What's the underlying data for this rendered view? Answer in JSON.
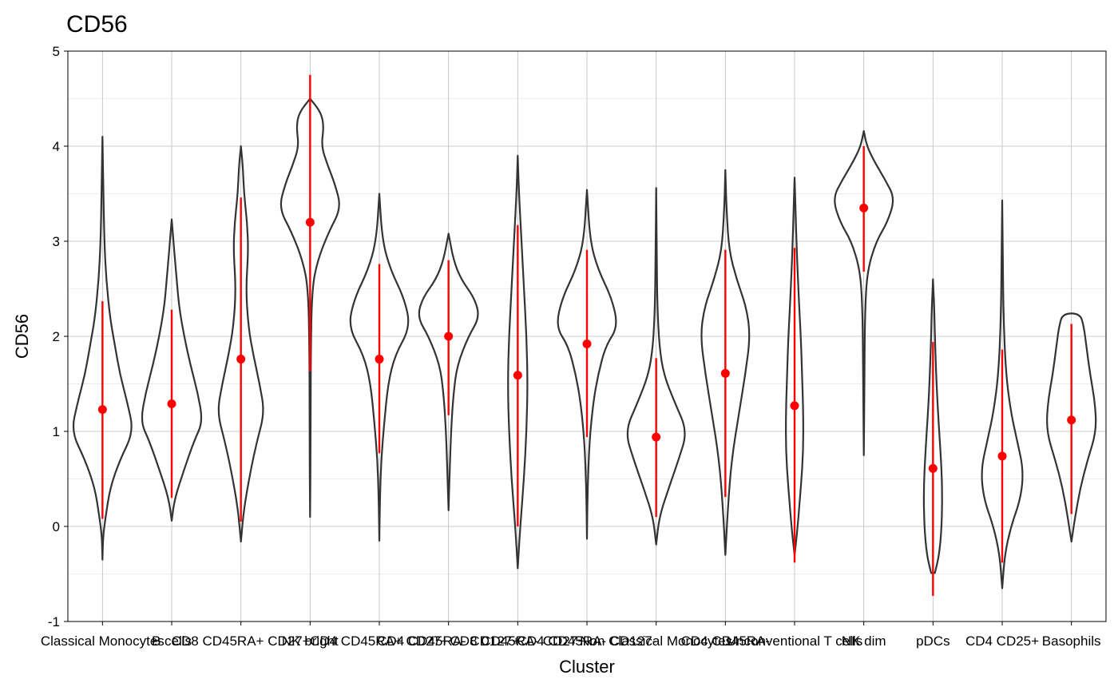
{
  "chart_data": {
    "type": "violin",
    "title": "CD56",
    "xlabel": "Cluster",
    "ylabel": "CD56",
    "ylim": [
      -1,
      5
    ],
    "yticks": [
      -1,
      0,
      1,
      2,
      3,
      4,
      5
    ],
    "ytick_labels": [
      "-1",
      "0",
      "1",
      "2",
      "3",
      "4",
      "5"
    ],
    "grid": true,
    "legend": "none",
    "colors": {
      "violin": "#333333",
      "summary": "#ff0000",
      "grid": "#d9d9d9"
    },
    "categories": [
      {
        "name": "Classical Monocytes",
        "min": -0.35,
        "max": 4.1,
        "mean": 1.23,
        "sd_low": 0.08,
        "sd_high": 2.37,
        "profile": [
          [
            -0.35,
            0.0
          ],
          [
            -0.1,
            0.01
          ],
          [
            0.1,
            0.05
          ],
          [
            0.4,
            0.12
          ],
          [
            0.7,
            0.28
          ],
          [
            1.0,
            0.5
          ],
          [
            1.3,
            0.4
          ],
          [
            1.6,
            0.28
          ],
          [
            1.9,
            0.2
          ],
          [
            2.2,
            0.12
          ],
          [
            2.6,
            0.06
          ],
          [
            3.0,
            0.03
          ],
          [
            3.5,
            0.015
          ],
          [
            4.1,
            0.0
          ]
        ]
      },
      {
        "name": "B cells",
        "min": 0.06,
        "max": 3.23,
        "mean": 1.29,
        "sd_low": 0.3,
        "sd_high": 2.28,
        "profile": [
          [
            0.06,
            0.0
          ],
          [
            0.3,
            0.05
          ],
          [
            0.6,
            0.2
          ],
          [
            0.9,
            0.36
          ],
          [
            1.1,
            0.5
          ],
          [
            1.4,
            0.42
          ],
          [
            1.7,
            0.3
          ],
          [
            2.0,
            0.2
          ],
          [
            2.3,
            0.12
          ],
          [
            2.6,
            0.08
          ],
          [
            2.9,
            0.04
          ],
          [
            3.23,
            0.0
          ]
        ]
      },
      {
        "name": "CD8 CD45RA+ CD27+",
        "min": -0.16,
        "max": 4.0,
        "mean": 1.76,
        "sd_low": 0.05,
        "sd_high": 3.46,
        "profile": [
          [
            -0.16,
            0.0
          ],
          [
            0.2,
            0.05
          ],
          [
            0.6,
            0.16
          ],
          [
            0.9,
            0.26
          ],
          [
            1.2,
            0.38
          ],
          [
            1.5,
            0.3
          ],
          [
            1.8,
            0.2
          ],
          [
            2.1,
            0.12
          ],
          [
            2.5,
            0.08
          ],
          [
            2.9,
            0.12
          ],
          [
            3.2,
            0.1
          ],
          [
            3.5,
            0.05
          ],
          [
            3.8,
            0.03
          ],
          [
            4.0,
            0.0
          ]
        ]
      },
      {
        "name": "NK bright",
        "min": 0.1,
        "max": 4.5,
        "mean": 3.2,
        "sd_low": 1.63,
        "sd_high": 4.75,
        "profile": [
          [
            0.1,
            0.0
          ],
          [
            1.0,
            0.01
          ],
          [
            1.8,
            0.01
          ],
          [
            2.5,
            0.03
          ],
          [
            2.8,
            0.12
          ],
          [
            3.1,
            0.3
          ],
          [
            3.35,
            0.5
          ],
          [
            3.6,
            0.4
          ],
          [
            3.8,
            0.28
          ],
          [
            4.0,
            0.18
          ],
          [
            4.2,
            0.22
          ],
          [
            4.35,
            0.18
          ],
          [
            4.5,
            0.0
          ]
        ]
      },
      {
        "name": "CD4 CD45RA+ CD27+",
        "min": -0.15,
        "max": 3.5,
        "mean": 1.76,
        "sd_low": 0.77,
        "sd_high": 2.76,
        "profile": [
          [
            -0.15,
            0.0
          ],
          [
            0.3,
            0.01
          ],
          [
            0.7,
            0.03
          ],
          [
            1.1,
            0.08
          ],
          [
            1.5,
            0.14
          ],
          [
            1.8,
            0.25
          ],
          [
            2.1,
            0.5
          ],
          [
            2.4,
            0.4
          ],
          [
            2.7,
            0.18
          ],
          [
            3.0,
            0.05
          ],
          [
            3.5,
            0.0
          ]
        ]
      },
      {
        "name": "CD4 CD45RA- CD127+",
        "min": 0.17,
        "max": 3.08,
        "mean": 2.0,
        "sd_low": 1.17,
        "sd_high": 2.8,
        "profile": [
          [
            0.17,
            0.0
          ],
          [
            0.6,
            0.02
          ],
          [
            1.0,
            0.04
          ],
          [
            1.4,
            0.08
          ],
          [
            1.7,
            0.14
          ],
          [
            2.0,
            0.32
          ],
          [
            2.2,
            0.5
          ],
          [
            2.4,
            0.42
          ],
          [
            2.6,
            0.2
          ],
          [
            2.8,
            0.08
          ],
          [
            3.08,
            0.0
          ]
        ]
      },
      {
        "name": "CD8 CD45RA- CD27+",
        "min": -0.44,
        "max": 3.9,
        "mean": 1.59,
        "sd_low": 0.0,
        "sd_high": 3.17,
        "profile": [
          [
            -0.44,
            0.0
          ],
          [
            0.0,
            0.04
          ],
          [
            0.5,
            0.1
          ],
          [
            1.0,
            0.14
          ],
          [
            1.5,
            0.16
          ],
          [
            2.0,
            0.14
          ],
          [
            2.5,
            0.1
          ],
          [
            3.0,
            0.06
          ],
          [
            3.5,
            0.02
          ],
          [
            3.9,
            0.0
          ]
        ]
      },
      {
        "name": "CD4 CD45RA- CD127-",
        "min": -0.13,
        "max": 3.54,
        "mean": 1.92,
        "sd_low": 0.94,
        "sd_high": 2.91,
        "profile": [
          [
            -0.13,
            0.0
          ],
          [
            0.4,
            0.01
          ],
          [
            0.9,
            0.04
          ],
          [
            1.3,
            0.1
          ],
          [
            1.6,
            0.18
          ],
          [
            1.9,
            0.3
          ],
          [
            2.1,
            0.5
          ],
          [
            2.4,
            0.4
          ],
          [
            2.7,
            0.18
          ],
          [
            3.0,
            0.05
          ],
          [
            3.54,
            0.0
          ]
        ]
      },
      {
        "name": "Non Classical Monocytes",
        "min": -0.19,
        "max": 3.56,
        "mean": 0.94,
        "sd_low": 0.1,
        "sd_high": 1.77,
        "profile": [
          [
            -0.19,
            0.0
          ],
          [
            0.1,
            0.05
          ],
          [
            0.4,
            0.2
          ],
          [
            0.7,
            0.36
          ],
          [
            1.0,
            0.5
          ],
          [
            1.3,
            0.3
          ],
          [
            1.6,
            0.12
          ],
          [
            1.9,
            0.05
          ],
          [
            2.3,
            0.02
          ],
          [
            2.8,
            0.01
          ],
          [
            3.56,
            0.0
          ]
        ]
      },
      {
        "name": "CD4 CD45RA-",
        "min": -0.3,
        "max": 3.75,
        "mean": 1.61,
        "sd_low": 0.31,
        "sd_high": 2.91,
        "profile": [
          [
            -0.3,
            0.0
          ],
          [
            0.2,
            0.04
          ],
          [
            0.7,
            0.1
          ],
          [
            1.2,
            0.22
          ],
          [
            1.6,
            0.32
          ],
          [
            2.0,
            0.4
          ],
          [
            2.3,
            0.34
          ],
          [
            2.6,
            0.18
          ],
          [
            2.9,
            0.06
          ],
          [
            3.3,
            0.02
          ],
          [
            3.75,
            0.0
          ]
        ]
      },
      {
        "name": "Unconventional T cells",
        "min": -0.3,
        "max": 3.67,
        "mean": 1.27,
        "sd_low": -0.38,
        "sd_high": 2.93,
        "profile": [
          [
            -0.3,
            0.0
          ],
          [
            0.0,
            0.05
          ],
          [
            0.4,
            0.1
          ],
          [
            0.8,
            0.14
          ],
          [
            1.2,
            0.14
          ],
          [
            1.6,
            0.12
          ],
          [
            2.0,
            0.1
          ],
          [
            2.5,
            0.06
          ],
          [
            3.0,
            0.03
          ],
          [
            3.67,
            0.0
          ]
        ]
      },
      {
        "name": "NK dim",
        "min": 0.75,
        "max": 4.16,
        "mean": 3.35,
        "sd_low": 2.68,
        "sd_high": 4.0,
        "profile": [
          [
            0.75,
            0.0
          ],
          [
            1.5,
            0.01
          ],
          [
            2.3,
            0.02
          ],
          [
            2.7,
            0.06
          ],
          [
            3.0,
            0.2
          ],
          [
            3.2,
            0.38
          ],
          [
            3.45,
            0.5
          ],
          [
            3.65,
            0.34
          ],
          [
            3.85,
            0.16
          ],
          [
            4.0,
            0.05
          ],
          [
            4.16,
            0.0
          ]
        ]
      },
      {
        "name": "pDCs",
        "min": -0.49,
        "max": 2.6,
        "mean": 0.61,
        "sd_low": -0.73,
        "sd_high": 1.94,
        "profile": [
          [
            -0.49,
            0.03
          ],
          [
            -0.3,
            0.1
          ],
          [
            0.0,
            0.14
          ],
          [
            0.4,
            0.15
          ],
          [
            0.8,
            0.12
          ],
          [
            1.2,
            0.08
          ],
          [
            1.6,
            0.05
          ],
          [
            2.0,
            0.03
          ],
          [
            2.3,
            0.02
          ],
          [
            2.6,
            0.0
          ]
        ]
      },
      {
        "name": "CD4 CD25+",
        "min": -0.65,
        "max": 3.43,
        "mean": 0.74,
        "sd_low": -0.38,
        "sd_high": 1.86,
        "profile": [
          [
            -0.65,
            0.0
          ],
          [
            -0.3,
            0.04
          ],
          [
            0.0,
            0.14
          ],
          [
            0.3,
            0.3
          ],
          [
            0.6,
            0.34
          ],
          [
            0.9,
            0.24
          ],
          [
            1.2,
            0.14
          ],
          [
            1.6,
            0.06
          ],
          [
            2.2,
            0.02
          ],
          [
            2.8,
            0.01
          ],
          [
            3.43,
            0.0
          ]
        ]
      },
      {
        "name": "Basophils",
        "min": -0.16,
        "max": 2.24,
        "mean": 1.12,
        "sd_low": 0.13,
        "sd_high": 2.13,
        "profile": [
          [
            -0.16,
            0.0
          ],
          [
            0.1,
            0.06
          ],
          [
            0.4,
            0.14
          ],
          [
            0.7,
            0.26
          ],
          [
            1.0,
            0.4
          ],
          [
            1.3,
            0.38
          ],
          [
            1.6,
            0.3
          ],
          [
            1.9,
            0.24
          ],
          [
            2.1,
            0.2
          ],
          [
            2.24,
            0.14
          ]
        ]
      }
    ]
  }
}
